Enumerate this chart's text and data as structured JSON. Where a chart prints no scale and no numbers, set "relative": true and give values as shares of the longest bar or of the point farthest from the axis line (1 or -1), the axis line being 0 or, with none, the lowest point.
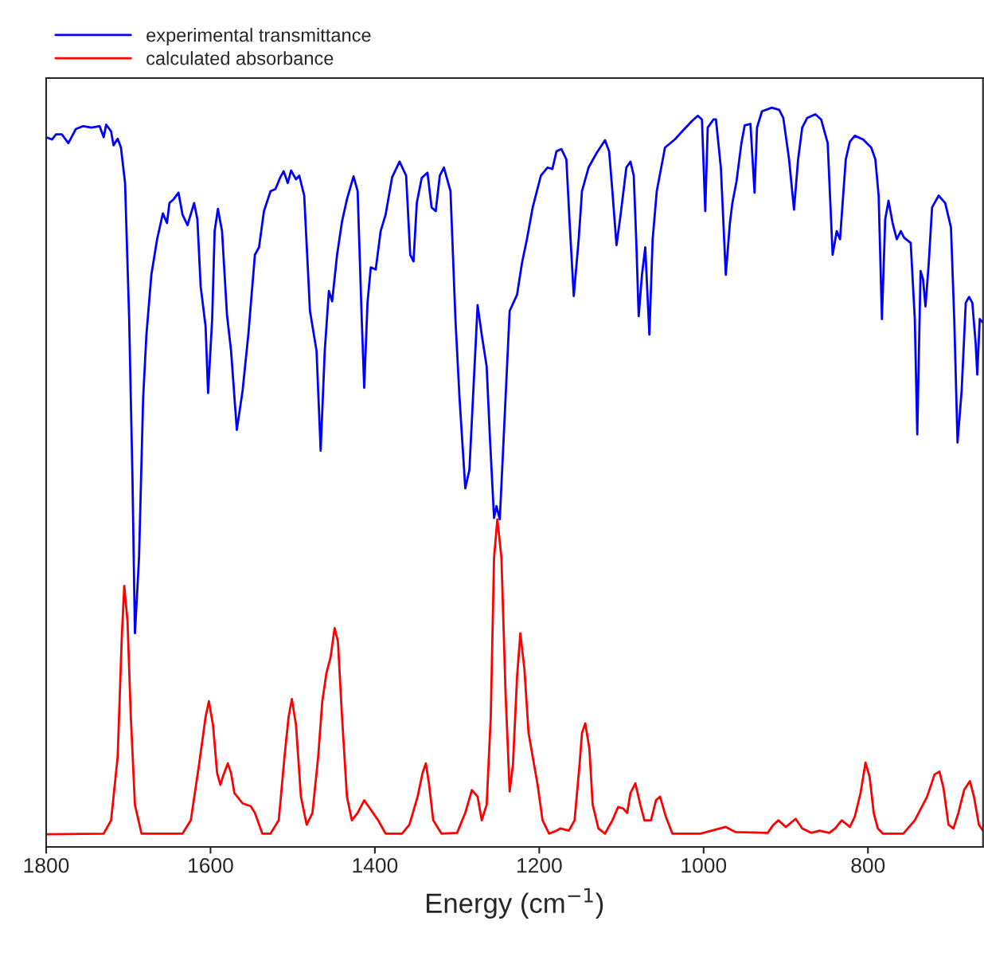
{
  "chart_data": {
    "type": "line",
    "relative": true,
    "xlabel": "Energy (cm$^{−1}$)",
    "xlim": [
      1800,
      660
    ],
    "xticks": [
      1800,
      1600,
      1400,
      1200,
      1000,
      800
    ],
    "grid": false,
    "legend": "top left",
    "line_style": "solid",
    "marker": "none",
    "series": [
      {
        "name": "experimental transmittance",
        "color": "#0000ff",
        "x": [
          1800,
          1793,
          1788,
          1781,
          1773,
          1764,
          1755,
          1745,
          1735,
          1730,
          1727,
          1721,
          1718,
          1713,
          1709,
          1704,
          1699,
          1695,
          1692,
          1687,
          1682,
          1678,
          1672,
          1665,
          1658,
          1653,
          1650,
          1645,
          1639,
          1634,
          1628,
          1620,
          1616,
          1612,
          1606,
          1603,
          1598,
          1595,
          1591,
          1586,
          1580,
          1575,
          1568,
          1561,
          1554,
          1546,
          1541,
          1535,
          1527,
          1521,
          1515,
          1511,
          1506,
          1502,
          1496,
          1492,
          1486,
          1479,
          1471,
          1466,
          1461,
          1456,
          1452,
          1446,
          1440,
          1434,
          1426,
          1421,
          1416,
          1413,
          1409,
          1405,
          1399,
          1393,
          1387,
          1379,
          1370,
          1362,
          1357,
          1353,
          1349,
          1343,
          1336,
          1331,
          1326,
          1321,
          1316,
          1308,
          1302,
          1297,
          1290,
          1285,
          1275,
          1270,
          1264,
          1260,
          1255,
          1252,
          1248,
          1241,
          1236,
          1227,
          1221,
          1215,
          1208,
          1198,
          1190,
          1184,
          1179,
          1173,
          1167,
          1163,
          1158,
          1152,
          1148,
          1140,
          1130,
          1120,
          1115,
          1111,
          1106,
          1101,
          1094,
          1089,
          1085,
          1082,
          1079,
          1075,
          1071,
          1066,
          1062,
          1057,
          1047,
          1035,
          1026,
          1014,
          1007,
          1002,
          998,
          995,
          988,
          985,
          979,
          973,
          968,
          965,
          960,
          954,
          950,
          943,
          938,
          935,
          929,
          917,
          908,
          903,
          896,
          890,
          885,
          880,
          874,
          864,
          857,
          849,
          843,
          838,
          834,
          827,
          822,
          816,
          806,
          796,
          791,
          787,
          783,
          779,
          775,
          770,
          765,
          760,
          756,
          748,
          743,
          740,
          736,
          733,
          730,
          726,
          722,
          714,
          706,
          699,
          695,
          691,
          686,
          681,
          677,
          673,
          669,
          667,
          664,
          660
        ],
        "values": [
          0.96,
          0.957,
          0.964,
          0.964,
          0.952,
          0.971,
          0.975,
          0.973,
          0.975,
          0.96,
          0.977,
          0.968,
          0.949,
          0.958,
          0.946,
          0.898,
          0.714,
          0.499,
          0.289,
          0.391,
          0.607,
          0.693,
          0.774,
          0.822,
          0.857,
          0.844,
          0.871,
          0.876,
          0.885,
          0.855,
          0.841,
          0.871,
          0.849,
          0.758,
          0.704,
          0.614,
          0.714,
          0.833,
          0.863,
          0.833,
          0.72,
          0.671,
          0.564,
          0.617,
          0.693,
          0.801,
          0.811,
          0.86,
          0.887,
          0.89,
          0.906,
          0.914,
          0.898,
          0.915,
          0.903,
          0.908,
          0.881,
          0.725,
          0.671,
          0.536,
          0.671,
          0.752,
          0.738,
          0.801,
          0.846,
          0.876,
          0.907,
          0.887,
          0.714,
          0.621,
          0.736,
          0.784,
          0.781,
          0.833,
          0.855,
          0.906,
          0.927,
          0.908,
          0.801,
          0.792,
          0.871,
          0.905,
          0.912,
          0.865,
          0.86,
          0.908,
          0.919,
          0.887,
          0.714,
          0.607,
          0.485,
          0.51,
          0.733,
          0.693,
          0.65,
          0.553,
          0.445,
          0.461,
          0.443,
          0.607,
          0.725,
          0.747,
          0.79,
          0.822,
          0.865,
          0.908,
          0.919,
          0.917,
          0.941,
          0.944,
          0.93,
          0.844,
          0.745,
          0.822,
          0.887,
          0.919,
          0.939,
          0.956,
          0.941,
          0.887,
          0.814,
          0.855,
          0.919,
          0.927,
          0.908,
          0.822,
          0.718,
          0.774,
          0.811,
          0.693,
          0.822,
          0.887,
          0.946,
          0.957,
          0.968,
          0.982,
          0.989,
          0.984,
          0.86,
          0.973,
          0.984,
          0.984,
          0.919,
          0.774,
          0.844,
          0.871,
          0.9,
          0.952,
          0.976,
          0.978,
          0.885,
          0.973,
          0.995,
          1.0,
          0.997,
          0.986,
          0.93,
          0.862,
          0.93,
          0.973,
          0.986,
          0.991,
          0.984,
          0.952,
          0.801,
          0.833,
          0.822,
          0.93,
          0.954,
          0.962,
          0.957,
          0.946,
          0.93,
          0.881,
          0.714,
          0.849,
          0.874,
          0.844,
          0.822,
          0.833,
          0.824,
          0.817,
          0.714,
          0.558,
          0.779,
          0.768,
          0.731,
          0.79,
          0.865,
          0.881,
          0.871,
          0.838,
          0.714,
          0.547,
          0.617,
          0.736,
          0.744,
          0.736,
          0.682,
          0.639,
          0.714,
          0.709
        ]
      },
      {
        "name": "calculated absorbance",
        "color": "#ff0000",
        "x": [
          1800,
          1730,
          1721,
          1713,
          1708,
          1705,
          1701,
          1697,
          1692,
          1684,
          1634,
          1624,
          1614,
          1606,
          1602,
          1597,
          1592,
          1588,
          1585,
          1579,
          1575,
          1571,
          1561,
          1551,
          1546,
          1537,
          1527,
          1517,
          1510,
          1505,
          1501,
          1496,
          1490,
          1483,
          1476,
          1469,
          1464,
          1459,
          1454,
          1449,
          1445,
          1440,
          1434,
          1428,
          1421,
          1413,
          1406,
          1396,
          1387,
          1367,
          1358,
          1348,
          1342,
          1338,
          1334,
          1329,
          1319,
          1300,
          1290,
          1282,
          1275,
          1270,
          1264,
          1259,
          1255,
          1251,
          1246,
          1241,
          1236,
          1232,
          1227,
          1223,
          1218,
          1213,
          1208,
          1202,
          1196,
          1188,
          1179,
          1174,
          1164,
          1157,
          1151,
          1148,
          1144,
          1139,
          1135,
          1128,
          1120,
          1111,
          1104,
          1098,
          1093,
          1089,
          1083,
          1077,
          1072,
          1064,
          1058,
          1053,
          1046,
          1038,
          1004,
          973,
          961,
          922,
          915,
          909,
          900,
          888,
          880,
          869,
          859,
          847,
          840,
          832,
          822,
          816,
          809,
          803,
          798,
          793,
          788,
          782,
          757,
          743,
          728,
          719,
          713,
          708,
          702,
          696,
          690,
          683,
          676,
          671,
          665,
          660
        ],
        "values": [
          0.017,
          0.018,
          0.036,
          0.122,
          0.283,
          0.353,
          0.305,
          0.176,
          0.057,
          0.018,
          0.018,
          0.036,
          0.111,
          0.176,
          0.197,
          0.165,
          0.1,
          0.084,
          0.095,
          0.113,
          0.1,
          0.073,
          0.059,
          0.055,
          0.046,
          0.018,
          0.018,
          0.036,
          0.122,
          0.176,
          0.2,
          0.165,
          0.068,
          0.03,
          0.046,
          0.122,
          0.197,
          0.235,
          0.256,
          0.296,
          0.278,
          0.176,
          0.068,
          0.036,
          0.046,
          0.063,
          0.052,
          0.036,
          0.018,
          0.018,
          0.03,
          0.068,
          0.1,
          0.113,
          0.084,
          0.036,
          0.018,
          0.019,
          0.046,
          0.077,
          0.068,
          0.036,
          0.057,
          0.176,
          0.391,
          0.443,
          0.391,
          0.208,
          0.075,
          0.111,
          0.23,
          0.289,
          0.24,
          0.154,
          0.122,
          0.084,
          0.036,
          0.018,
          0.022,
          0.025,
          0.022,
          0.036,
          0.111,
          0.154,
          0.167,
          0.133,
          0.057,
          0.025,
          0.018,
          0.036,
          0.054,
          0.052,
          0.046,
          0.073,
          0.086,
          0.057,
          0.036,
          0.036,
          0.063,
          0.068,
          0.041,
          0.018,
          0.018,
          0.027,
          0.02,
          0.019,
          0.03,
          0.036,
          0.027,
          0.038,
          0.025,
          0.019,
          0.022,
          0.019,
          0.025,
          0.036,
          0.027,
          0.041,
          0.073,
          0.114,
          0.095,
          0.046,
          0.025,
          0.018,
          0.018,
          0.036,
          0.068,
          0.098,
          0.102,
          0.079,
          0.03,
          0.025,
          0.046,
          0.077,
          0.089,
          0.068,
          0.03,
          0.022
        ]
      }
    ]
  }
}
